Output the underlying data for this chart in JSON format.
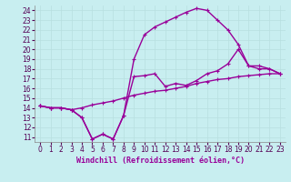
{
  "xlabel": "Windchill (Refroidissement éolien,°C)",
  "background_color": "#c8eef0",
  "line_color": "#990099",
  "grid_color": "#b8dfe0",
  "xlim": [
    -0.5,
    23.5
  ],
  "ylim": [
    10.5,
    24.5
  ],
  "xticks": [
    0,
    1,
    2,
    3,
    4,
    5,
    6,
    7,
    8,
    9,
    10,
    11,
    12,
    13,
    14,
    15,
    16,
    17,
    18,
    19,
    20,
    21,
    22,
    23
  ],
  "yticks": [
    11,
    12,
    13,
    14,
    15,
    16,
    17,
    18,
    19,
    20,
    21,
    22,
    23,
    24
  ],
  "curve1_x": [
    0,
    1,
    2,
    3,
    4,
    5,
    6,
    7,
    8,
    9,
    10,
    11,
    12,
    13,
    14,
    15,
    16,
    17,
    18,
    19,
    20,
    21,
    22,
    23
  ],
  "curve1_y": [
    14.2,
    14.0,
    14.0,
    13.8,
    13.0,
    10.8,
    11.3,
    10.8,
    13.2,
    17.2,
    17.3,
    17.5,
    16.2,
    16.5,
    16.3,
    16.8,
    17.5,
    17.8,
    18.5,
    20.0,
    18.3,
    18.3,
    18.0,
    17.5
  ],
  "curve2_x": [
    0,
    1,
    2,
    3,
    4,
    5,
    6,
    7,
    8,
    9,
    10,
    11,
    12,
    13,
    14,
    15,
    16,
    17,
    18,
    19,
    20,
    21,
    22,
    23
  ],
  "curve2_y": [
    14.2,
    14.0,
    14.0,
    13.8,
    13.0,
    10.8,
    11.3,
    10.8,
    13.2,
    19.0,
    21.5,
    22.3,
    22.8,
    23.3,
    23.8,
    24.2,
    24.0,
    23.0,
    22.0,
    20.5,
    18.3,
    18.0,
    18.0,
    17.5
  ],
  "curve3_x": [
    0,
    1,
    2,
    3,
    4,
    5,
    6,
    7,
    8,
    9,
    10,
    11,
    12,
    13,
    14,
    15,
    16,
    17,
    18,
    19,
    20,
    21,
    22,
    23
  ],
  "curve3_y": [
    14.2,
    14.0,
    14.0,
    13.8,
    14.0,
    14.3,
    14.5,
    14.7,
    15.0,
    15.3,
    15.5,
    15.7,
    15.8,
    16.0,
    16.2,
    16.5,
    16.7,
    16.9,
    17.0,
    17.2,
    17.3,
    17.4,
    17.5,
    17.5
  ],
  "marker_size": 3.5,
  "linewidth": 1.0,
  "tick_fontsize": 5.5,
  "label_fontsize": 6.0
}
